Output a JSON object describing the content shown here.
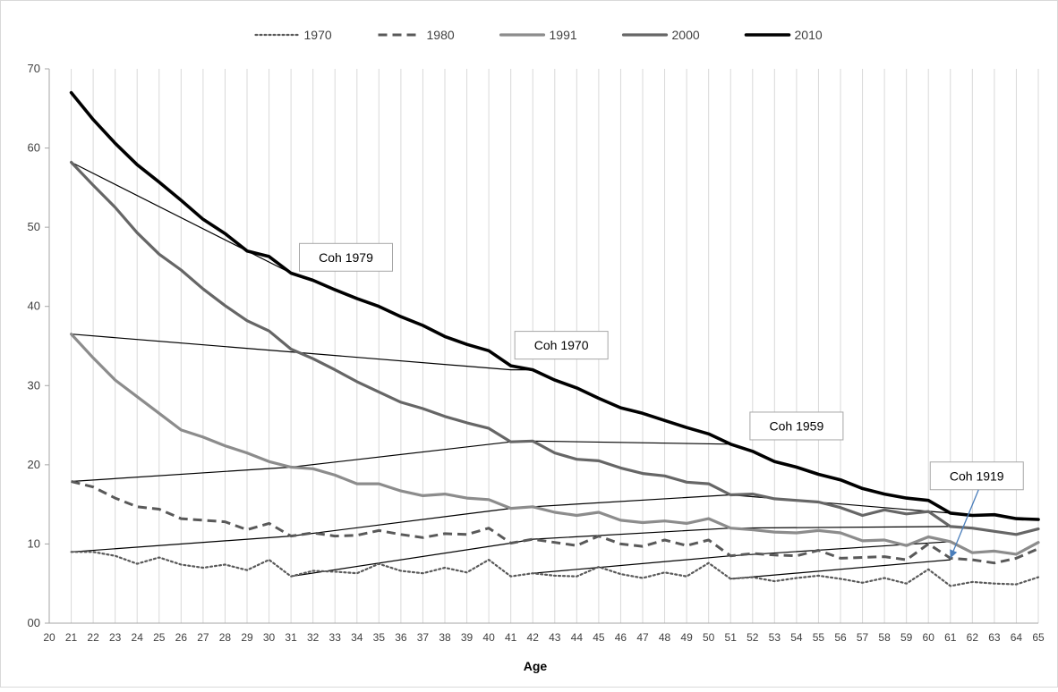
{
  "chart_data": {
    "type": "line",
    "title": "",
    "xlabel": "Age",
    "ylabel": "",
    "xlim": [
      20,
      65
    ],
    "ylim": [
      0,
      70
    ],
    "x_ticks": [
      "20",
      "21",
      "22",
      "23",
      "24",
      "25",
      "26",
      "27",
      "28",
      "29",
      "30",
      "31",
      "32",
      "33",
      "34",
      "35",
      "36",
      "37",
      "38",
      "39",
      "40",
      "41",
      "42",
      "43",
      "44",
      "45",
      "46",
      "47",
      "48",
      "49",
      "50",
      "51",
      "52",
      "53",
      "54",
      "55",
      "56",
      "57",
      "58",
      "59",
      "60",
      "61",
      "62",
      "63",
      "64",
      "65"
    ],
    "y_ticks": [
      "00",
      "10",
      "20",
      "30",
      "40",
      "50",
      "60",
      "70"
    ],
    "grid": "vertical",
    "legend_position": "top",
    "x": [
      21,
      22,
      23,
      24,
      25,
      26,
      27,
      28,
      29,
      30,
      31,
      32,
      33,
      34,
      35,
      36,
      37,
      38,
      39,
      40,
      41,
      42,
      43,
      44,
      45,
      46,
      47,
      48,
      49,
      50,
      51,
      52,
      53,
      54,
      55,
      56,
      57,
      58,
      59,
      60,
      61,
      62,
      63,
      64,
      65
    ],
    "series": [
      {
        "name": "1970",
        "style": "dotted",
        "color": "#595959",
        "values": [
          9.0,
          9.0,
          8.5,
          7.5,
          8.3,
          7.4,
          7.0,
          7.4,
          6.7,
          8.0,
          5.9,
          6.6,
          6.5,
          6.3,
          7.5,
          6.6,
          6.3,
          7.0,
          6.4,
          8.0,
          5.9,
          6.3,
          6.0,
          5.9,
          7.1,
          6.2,
          5.7,
          6.4,
          5.9,
          7.6,
          5.6,
          5.8,
          5.3,
          5.7,
          6.0,
          5.6,
          5.1,
          5.7,
          5.0,
          6.8,
          4.7,
          5.2,
          5.0,
          4.9,
          5.8
        ]
      },
      {
        "name": "1980",
        "style": "dashed",
        "color": "#595959",
        "values": [
          17.9,
          17.2,
          15.8,
          14.7,
          14.4,
          13.2,
          13.0,
          12.8,
          11.8,
          12.6,
          11.0,
          11.4,
          11.0,
          11.1,
          11.7,
          11.2,
          10.8,
          11.3,
          11.2,
          12.0,
          10.1,
          10.6,
          10.2,
          9.8,
          11.0,
          10.0,
          9.7,
          10.5,
          9.8,
          10.5,
          8.5,
          8.8,
          8.6,
          8.5,
          9.2,
          8.2,
          8.3,
          8.4,
          8.0,
          10.0,
          8.2,
          8.0,
          7.6,
          8.2,
          9.4
        ]
      },
      {
        "name": "1991",
        "style": "solid",
        "color": "#8c8c8c",
        "values": [
          36.5,
          33.5,
          30.7,
          28.6,
          26.5,
          24.4,
          23.5,
          22.4,
          21.5,
          20.4,
          19.7,
          19.5,
          18.7,
          17.6,
          17.6,
          16.7,
          16.1,
          16.3,
          15.8,
          15.6,
          14.5,
          14.7,
          14.0,
          13.6,
          14.0,
          13.0,
          12.7,
          12.9,
          12.6,
          13.2,
          12.0,
          11.8,
          11.5,
          11.4,
          11.7,
          11.4,
          10.4,
          10.5,
          9.8,
          10.9,
          10.3,
          8.9,
          9.1,
          8.7,
          10.2
        ]
      },
      {
        "name": "2000",
        "style": "solid",
        "color": "#666666",
        "values": [
          58.2,
          55.3,
          52.5,
          49.3,
          46.6,
          44.6,
          42.2,
          40.1,
          38.2,
          36.9,
          34.6,
          33.4,
          32.0,
          30.5,
          29.2,
          27.9,
          27.1,
          26.1,
          25.3,
          24.6,
          22.9,
          23.0,
          21.5,
          20.7,
          20.5,
          19.6,
          18.9,
          18.6,
          17.8,
          17.6,
          16.2,
          16.3,
          15.7,
          15.5,
          15.3,
          14.6,
          13.6,
          14.3,
          13.8,
          14.1,
          12.2,
          12.0,
          11.6,
          11.2,
          11.9
        ]
      },
      {
        "name": "2010",
        "style": "solid",
        "color": "#000000",
        "values": [
          67.0,
          63.6,
          60.6,
          57.9,
          55.7,
          53.4,
          51.0,
          49.2,
          47.0,
          46.3,
          44.2,
          43.3,
          42.1,
          41.0,
          40.0,
          38.7,
          37.6,
          36.2,
          35.2,
          34.4,
          32.5,
          32.0,
          30.7,
          29.7,
          28.4,
          27.2,
          26.5,
          25.6,
          24.7,
          23.9,
          22.6,
          21.7,
          20.4,
          19.7,
          18.8,
          18.1,
          17.0,
          16.3,
          15.8,
          15.5,
          13.9,
          13.6,
          13.7,
          13.2,
          13.1
        ]
      }
    ],
    "cohort_lines": [
      {
        "points": [
          [
            21,
            58.2
          ],
          [
            31,
            44.2
          ]
        ],
        "color": "#000000"
      },
      {
        "points": [
          [
            21,
            36.5
          ],
          [
            41,
            32.0
          ],
          [
            42,
            32.0
          ]
        ],
        "color": "#000000"
      },
      {
        "points": [
          [
            21,
            17.9
          ],
          [
            31,
            19.7
          ],
          [
            41,
            22.9
          ],
          [
            42,
            23.0
          ],
          [
            51,
            22.6
          ]
        ],
        "color": "#000000"
      },
      {
        "points": [
          [
            21,
            9.0
          ],
          [
            31,
            11.0
          ],
          [
            41,
            14.5
          ],
          [
            42,
            14.7
          ],
          [
            51,
            16.2
          ],
          [
            61,
            13.9
          ]
        ],
        "color": "#000000"
      },
      {
        "points": [
          [
            31,
            5.9
          ],
          [
            41,
            10.1
          ],
          [
            42,
            10.6
          ],
          [
            51,
            12.0
          ],
          [
            61,
            12.2
          ]
        ],
        "color": "#000000"
      },
      {
        "points": [
          [
            42,
            6.3
          ],
          [
            51,
            8.5
          ],
          [
            61,
            10.3
          ]
        ],
        "color": "#000000"
      },
      {
        "points": [
          [
            51,
            5.6
          ],
          [
            61,
            8.0
          ]
        ],
        "color": "#000000"
      }
    ],
    "annotations": [
      {
        "text": "Coh 1979",
        "x": 33.5,
        "y": 46.2
      },
      {
        "text": "Coh 1970",
        "x": 43.3,
        "y": 35.1
      },
      {
        "text": "Coh 1959",
        "x": 54.0,
        "y": 24.9
      },
      {
        "text": "Coh 1919",
        "x": 62.2,
        "y": 18.6,
        "arrow_to": [
          61,
          8.2
        ],
        "arrow_color": "#4a7ebb"
      }
    ]
  }
}
